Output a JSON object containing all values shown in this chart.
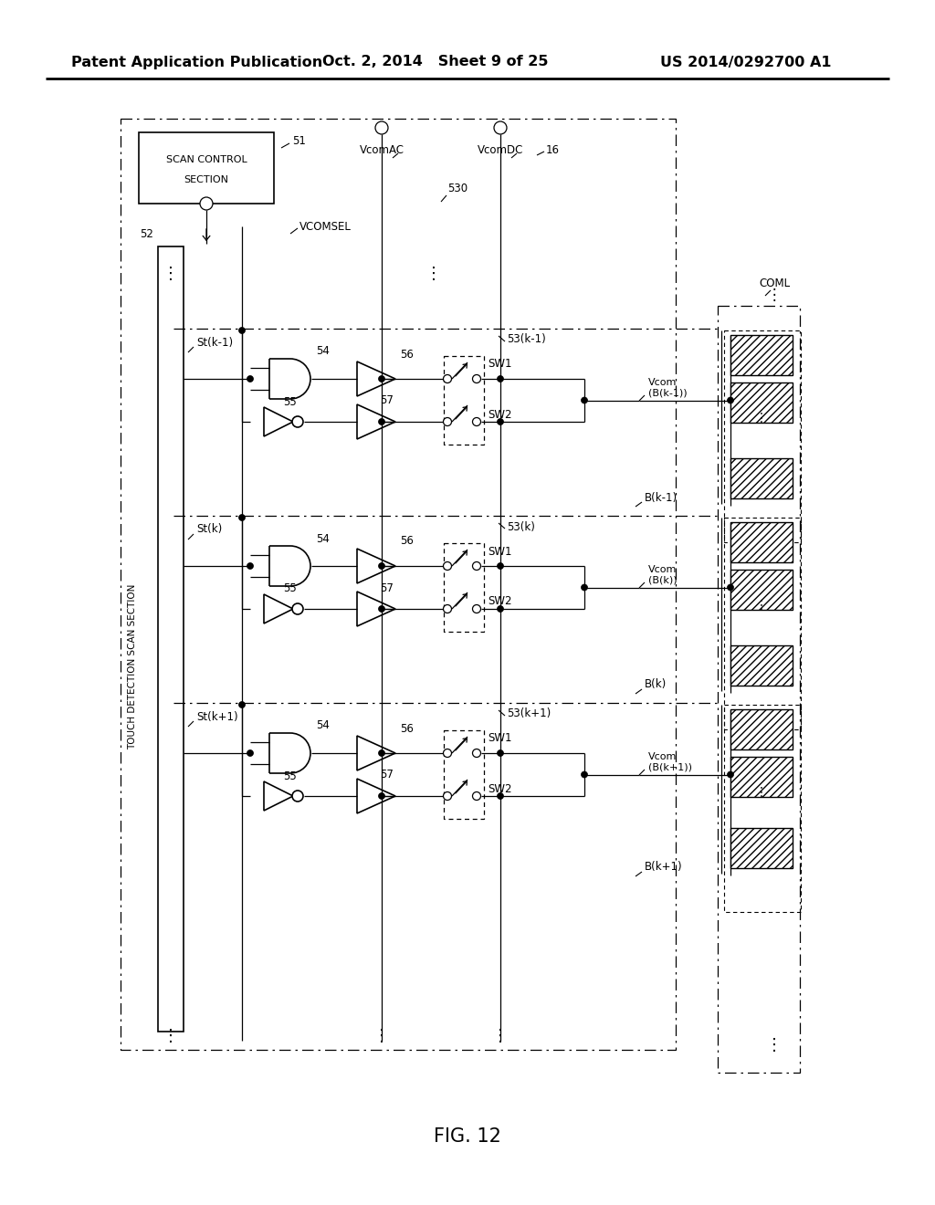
{
  "header_left": "Patent Application Publication",
  "header_mid": "Oct. 2, 2014   Sheet 9 of 25",
  "header_right": "US 2014/0292700 A1",
  "fig_caption": "FIG. 12",
  "bg_color": "#ffffff",
  "rows": [
    {
      "k": "k-1",
      "k_label": "k−1"
    },
    {
      "k": "k",
      "k_label": "k"
    },
    {
      "k": "k+1",
      "k_label": "k+1"
    }
  ]
}
